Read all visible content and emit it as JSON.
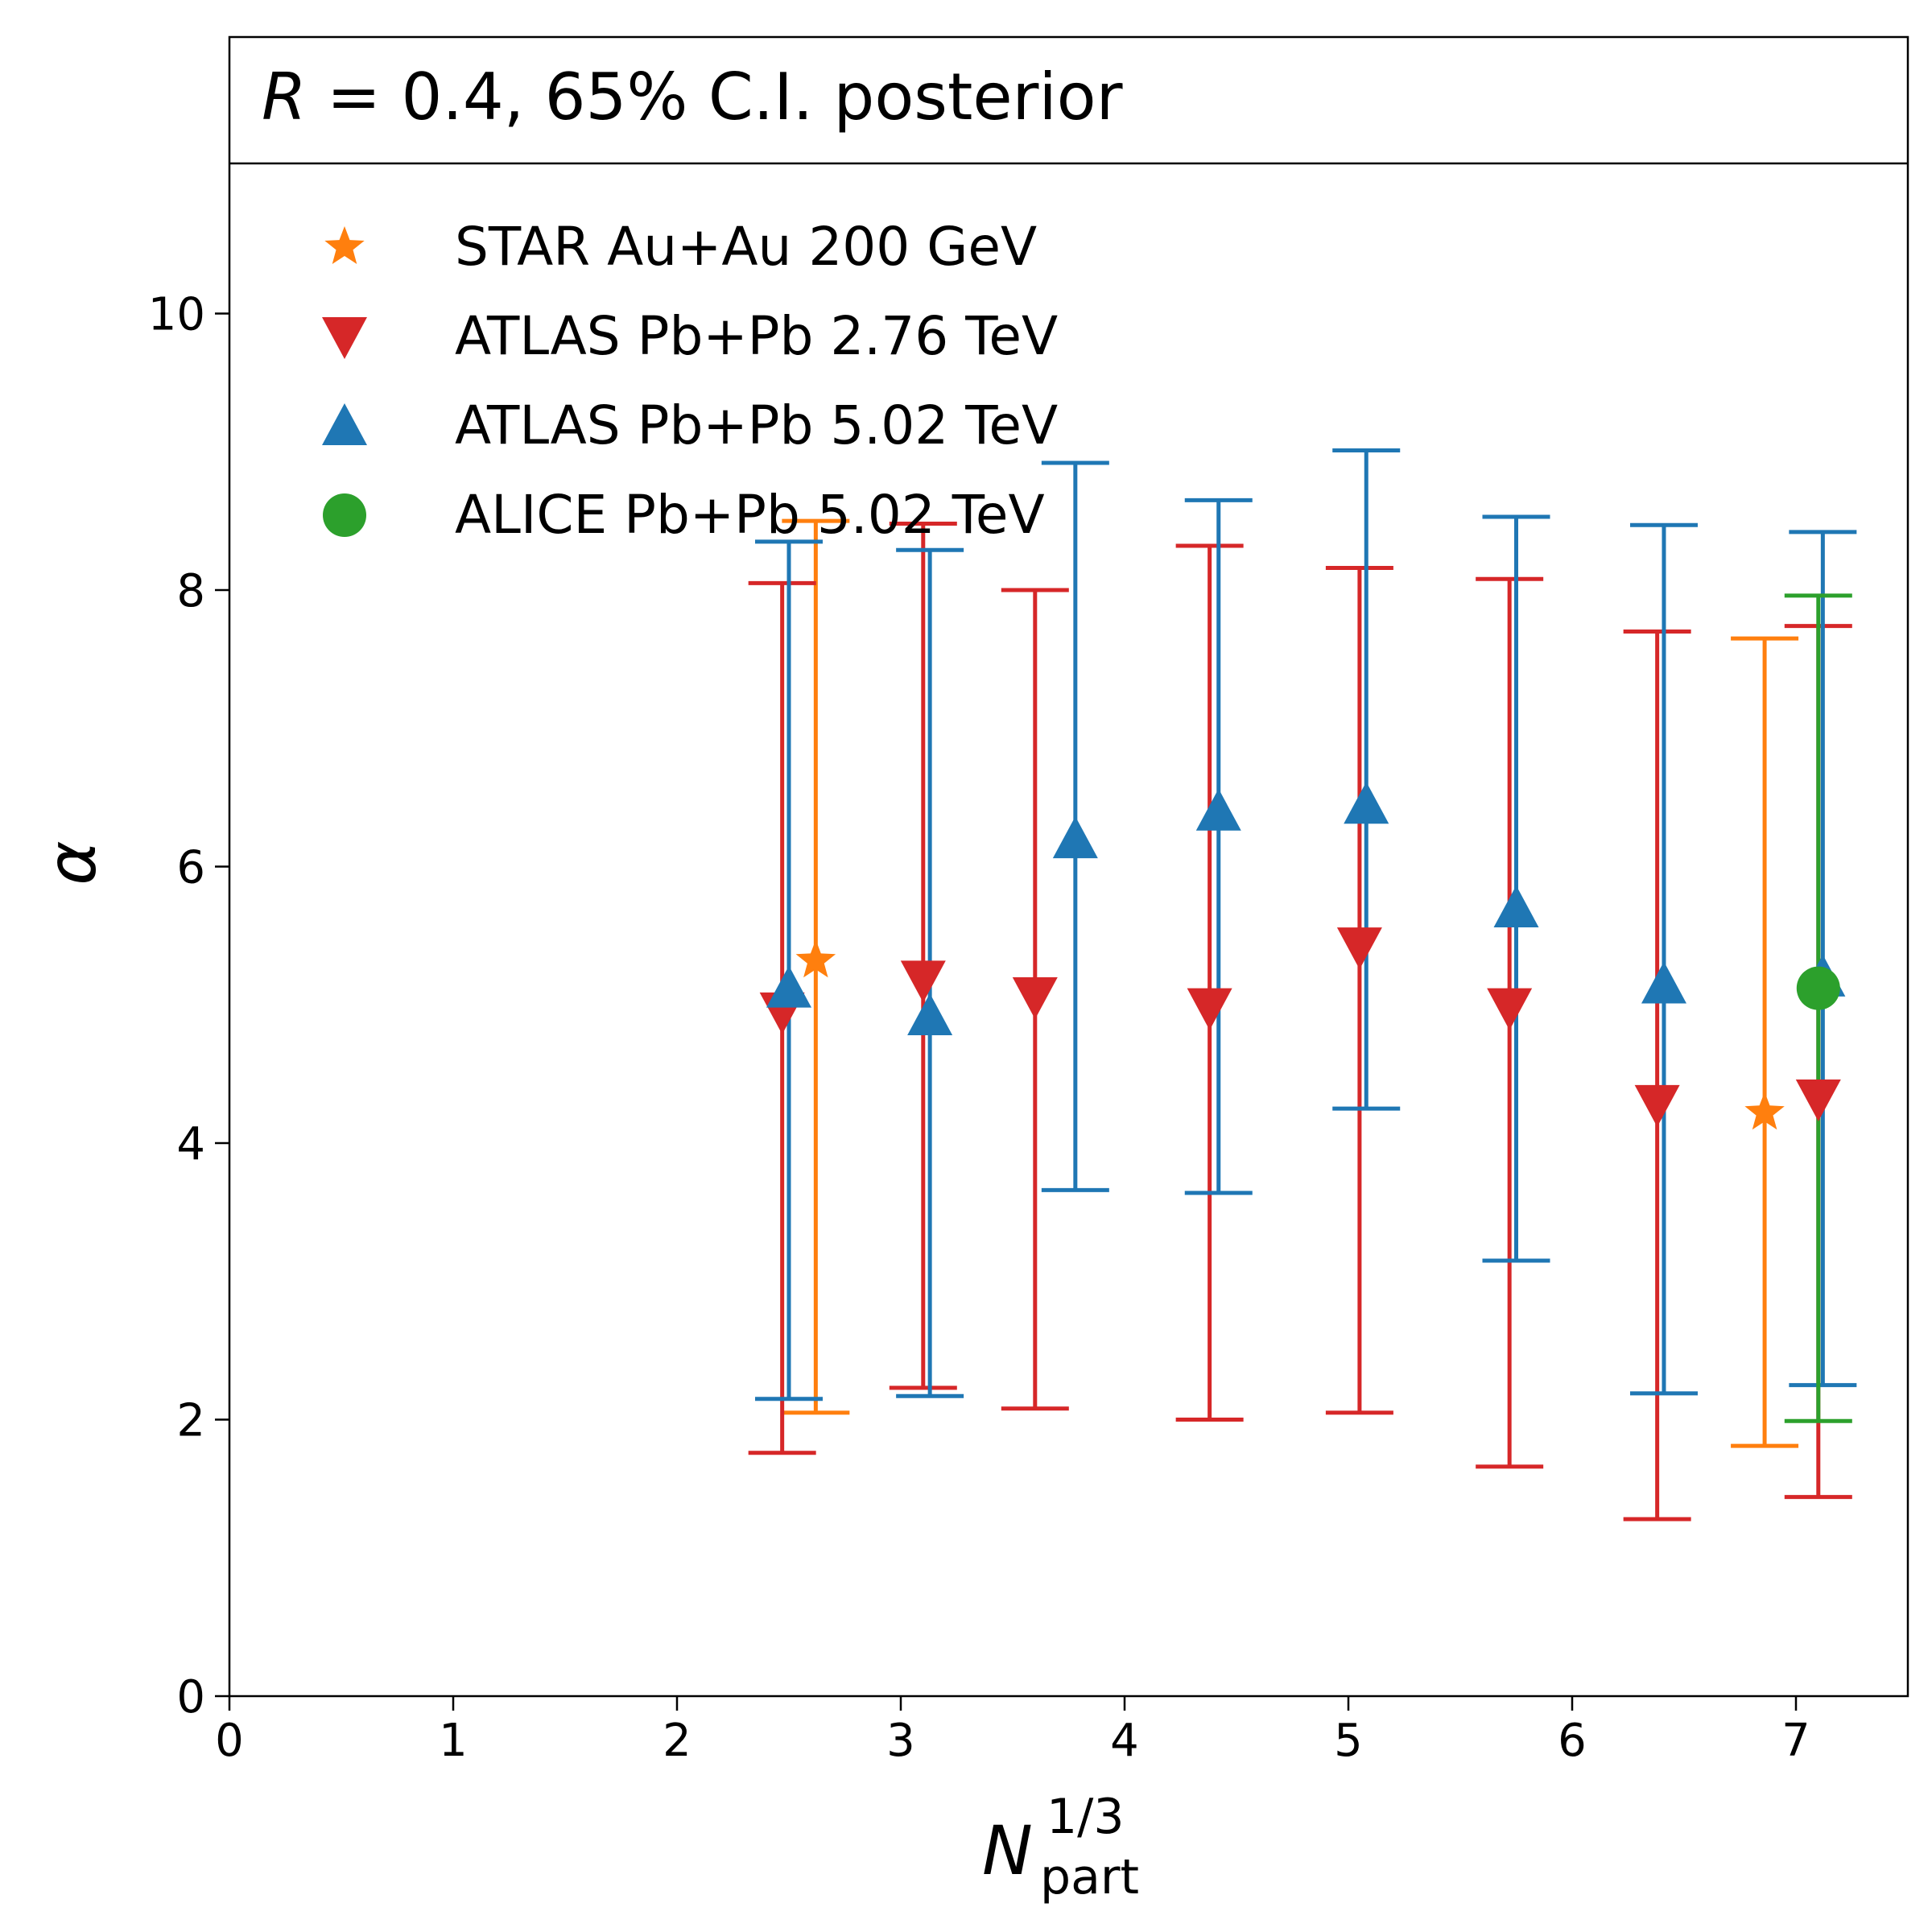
{
  "chart_data": {
    "type": "scatter",
    "title_prefix": "R",
    "title_suffix": " = 0.4, 65% C.I. posterior",
    "xlabel": {
      "base": "N",
      "sup": "1/3",
      "sub": "part"
    },
    "ylabel": "α",
    "xlim": [
      0,
      7.5
    ],
    "ylim": [
      0,
      12
    ],
    "xticks": [
      0,
      1,
      2,
      3,
      4,
      5,
      6,
      7
    ],
    "yticks": [
      0,
      2,
      4,
      6,
      8,
      10
    ],
    "legend_position": "upper-left",
    "series": [
      {
        "name": "STAR Au+Au 200 GeV",
        "marker": "star",
        "color": "#ff7f0e",
        "points": [
          {
            "x": 2.62,
            "y": 5.32,
            "lo": 2.05,
            "hi": 8.5
          },
          {
            "x": 6.86,
            "y": 4.22,
            "lo": 1.81,
            "hi": 7.65
          }
        ]
      },
      {
        "name": "ATLAS Pb+Pb 2.76 TeV",
        "marker": "triangle-down",
        "color": "#d62728",
        "points": [
          {
            "x": 2.47,
            "y": 4.95,
            "lo": 1.76,
            "hi": 8.05
          },
          {
            "x": 3.1,
            "y": 5.18,
            "lo": 2.23,
            "hi": 8.48
          },
          {
            "x": 3.6,
            "y": 5.06,
            "lo": 2.08,
            "hi": 8.0
          },
          {
            "x": 4.38,
            "y": 4.98,
            "lo": 2.0,
            "hi": 8.32
          },
          {
            "x": 5.05,
            "y": 5.42,
            "lo": 2.05,
            "hi": 8.16
          },
          {
            "x": 5.72,
            "y": 4.98,
            "lo": 1.66,
            "hi": 8.08
          },
          {
            "x": 6.38,
            "y": 4.28,
            "lo": 1.28,
            "hi": 7.7
          },
          {
            "x": 7.1,
            "y": 4.32,
            "lo": 1.44,
            "hi": 7.74
          }
        ]
      },
      {
        "name": "ATLAS Pb+Pb 5.02 TeV",
        "marker": "triangle-up",
        "color": "#1f77b4",
        "points": [
          {
            "x": 2.5,
            "y": 5.12,
            "lo": 2.15,
            "hi": 8.35
          },
          {
            "x": 3.13,
            "y": 4.92,
            "lo": 2.17,
            "hi": 8.29
          },
          {
            "x": 3.78,
            "y": 6.2,
            "lo": 3.66,
            "hi": 8.92
          },
          {
            "x": 4.42,
            "y": 6.4,
            "lo": 3.64,
            "hi": 8.65
          },
          {
            "x": 5.08,
            "y": 6.45,
            "lo": 4.25,
            "hi": 9.01
          },
          {
            "x": 5.75,
            "y": 5.7,
            "lo": 3.15,
            "hi": 8.53
          },
          {
            "x": 6.41,
            "y": 5.15,
            "lo": 2.19,
            "hi": 8.47
          },
          {
            "x": 7.12,
            "y": 5.2,
            "lo": 2.25,
            "hi": 8.42
          }
        ]
      },
      {
        "name": "ALICE Pb+Pb 5.02 TeV",
        "marker": "circle",
        "color": "#2ca02c",
        "points": [
          {
            "x": 7.1,
            "y": 5.12,
            "lo": 1.99,
            "hi": 7.96
          }
        ]
      }
    ]
  }
}
